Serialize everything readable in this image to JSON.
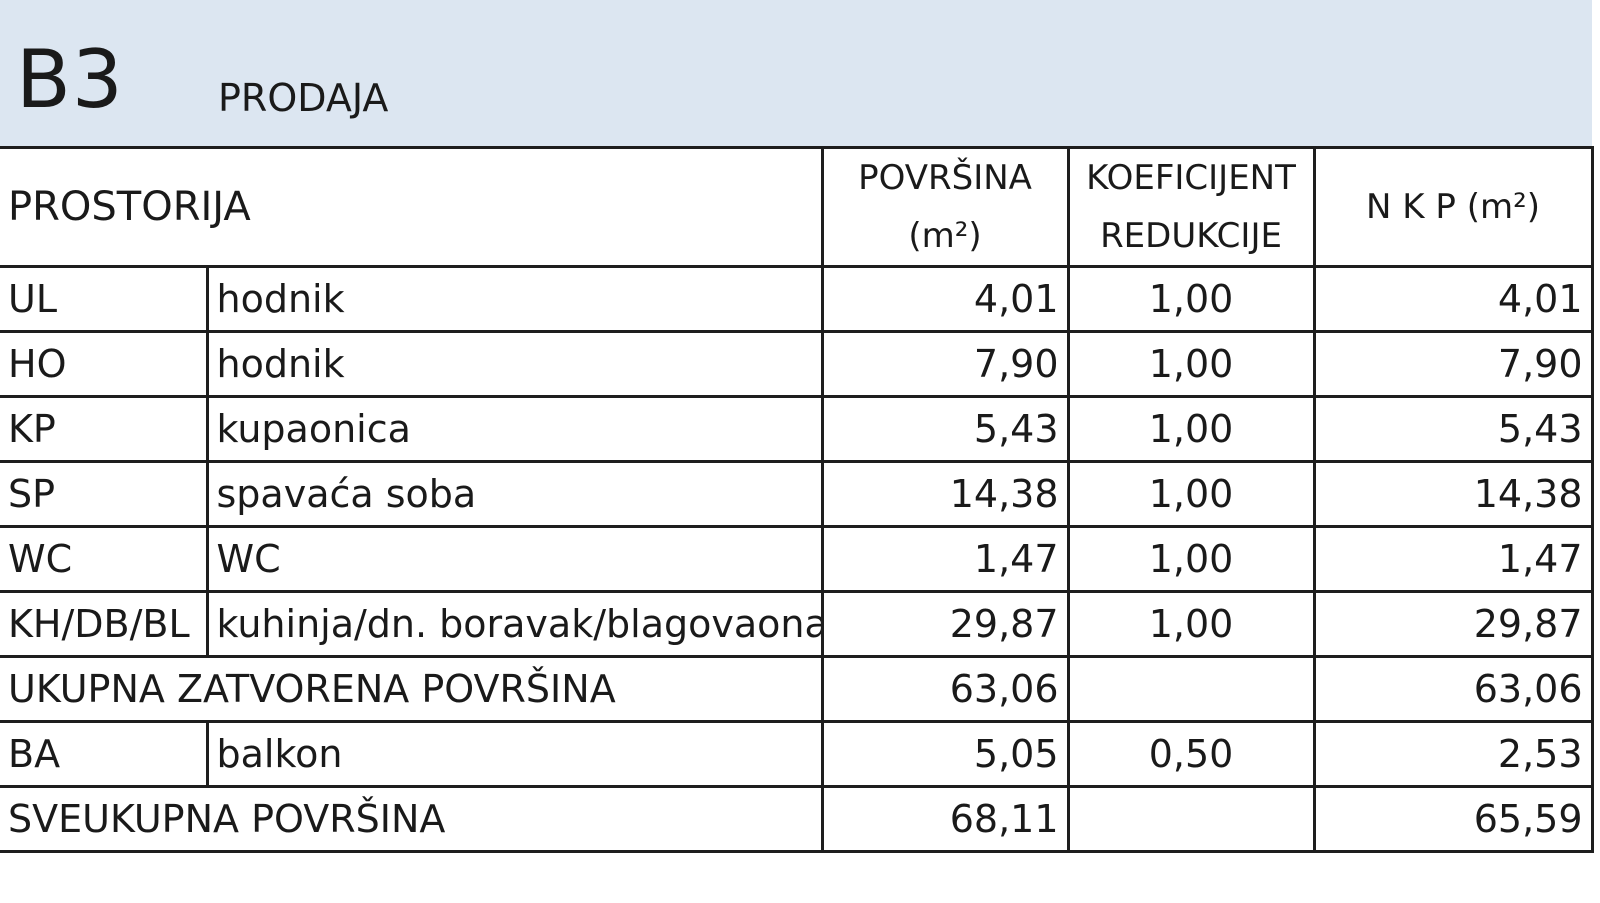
{
  "header": {
    "unit_code": "B3",
    "status": "PRODAJA"
  },
  "columns": {
    "room": "PROSTORIJA",
    "area_line1": "POVRŠINA",
    "area_line2": "(m²)",
    "coef_line1": "KOEFICIJENT",
    "coef_line2": "REDUKCIJE",
    "nkp": "N K P (m²)"
  },
  "rows": [
    {
      "code": "UL",
      "name": "hodnik",
      "area": "4,01",
      "coef": "1,00",
      "nkp": "4,01"
    },
    {
      "code": "HO",
      "name": "hodnik",
      "area": "7,90",
      "coef": "1,00",
      "nkp": "7,90"
    },
    {
      "code": "KP",
      "name": "kupaonica",
      "area": "5,43",
      "coef": "1,00",
      "nkp": "5,43"
    },
    {
      "code": "SP",
      "name": "spavaća soba",
      "area": "14,38",
      "coef": "1,00",
      "nkp": "14,38"
    },
    {
      "code": "WC",
      "name": "WC",
      "area": "1,47",
      "coef": "1,00",
      "nkp": "1,47"
    },
    {
      "code": "KH/DB/BL",
      "name": "kuhinja/dn. boravak/blagovaona",
      "area": "29,87",
      "coef": "1,00",
      "nkp": "29,87"
    }
  ],
  "subtotal": {
    "label": "UKUPNA ZATVORENA POVRŠINA",
    "area": "63,06",
    "nkp": "63,06"
  },
  "balcony": {
    "code": "BA",
    "name": "balkon",
    "area": "5,05",
    "coef": "0,50",
    "nkp": "2,53"
  },
  "total": {
    "label": "SVEUKUPNA POVRŠINA",
    "area": "68,11",
    "nkp": "65,59"
  }
}
